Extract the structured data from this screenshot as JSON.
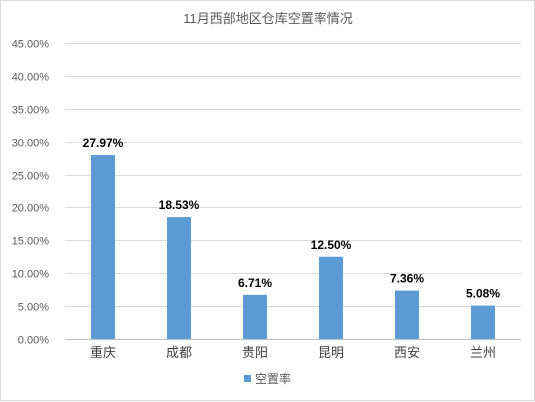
{
  "chart_data": {
    "type": "bar",
    "title": "11月西部地区仓库空置率情况",
    "categories": [
      "重庆",
      "成都",
      "贵阳",
      "昆明",
      "西安",
      "兰州"
    ],
    "series": [
      {
        "name": "空置率",
        "values": [
          27.97,
          18.53,
          6.71,
          12.5,
          7.36,
          5.08
        ],
        "labels": [
          "27.97%",
          "18.53%",
          "6.71%",
          "12.50%",
          "7.36%",
          "5.08%"
        ],
        "color": "#5b9bd5"
      }
    ],
    "ylim": [
      0,
      45
    ],
    "y_ticks": [
      0,
      5,
      10,
      15,
      20,
      25,
      30,
      35,
      40,
      45
    ],
    "y_tick_labels": [
      "0.00%",
      "5.00%",
      "10.00%",
      "15.00%",
      "20.00%",
      "25.00%",
      "30.00%",
      "35.00%",
      "40.00%",
      "45.00%"
    ],
    "grid": true,
    "legend_position": "bottom"
  }
}
